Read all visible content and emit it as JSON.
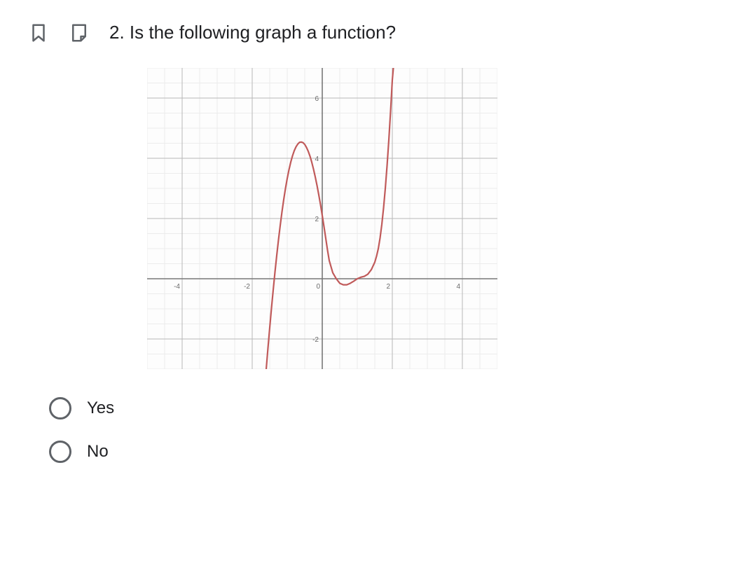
{
  "question": {
    "number_label": "2.",
    "text": "Is the following graph a function?"
  },
  "icons": {
    "bookmark_stroke": "#5f6368",
    "note_stroke": "#5f6368"
  },
  "graph": {
    "type": "line",
    "background_color": "#fdfdfd",
    "xlim": [
      -5,
      5
    ],
    "ylim": [
      -3,
      7
    ],
    "major_step": 2,
    "minor_step": 0.5,
    "major_grid_color": "#b8b8b8",
    "minor_grid_color": "#ececec",
    "axis_color": "#777777",
    "tick_label_color": "#6b6b6b",
    "tick_font_size": 10,
    "x_tick_labels": [
      {
        "v": -4,
        "label": "-4"
      },
      {
        "v": -2,
        "label": "-2"
      },
      {
        "v": 0,
        "label": "0"
      },
      {
        "v": 2,
        "label": "2"
      },
      {
        "v": 4,
        "label": "4"
      }
    ],
    "y_tick_labels": [
      {
        "v": -2,
        "label": "-2"
      },
      {
        "v": 2,
        "label": "2"
      },
      {
        "v": 4,
        "label": "4"
      },
      {
        "v": 6,
        "label": "6"
      }
    ],
    "curve": {
      "stroke": "#c05a5a",
      "stroke_width": 2.2,
      "points": [
        [
          -1.6,
          -3.0
        ],
        [
          -1.55,
          -2.3
        ],
        [
          -1.5,
          -1.63
        ],
        [
          -1.45,
          -0.98
        ],
        [
          -1.4,
          -0.37
        ],
        [
          -1.35,
          0.22
        ],
        [
          -1.3,
          0.77
        ],
        [
          -1.25,
          1.29
        ],
        [
          -1.2,
          1.77
        ],
        [
          -1.15,
          2.22
        ],
        [
          -1.1,
          2.63
        ],
        [
          -1.05,
          3.0
        ],
        [
          -1.0,
          3.33
        ],
        [
          -0.95,
          3.62
        ],
        [
          -0.9,
          3.87
        ],
        [
          -0.85,
          4.08
        ],
        [
          -0.8,
          4.25
        ],
        [
          -0.75,
          4.38
        ],
        [
          -0.7,
          4.47
        ],
        [
          -0.65,
          4.53
        ],
        [
          -0.6,
          4.54
        ],
        [
          -0.55,
          4.52
        ],
        [
          -0.5,
          4.46
        ],
        [
          -0.45,
          4.36
        ],
        [
          -0.4,
          4.23
        ],
        [
          -0.35,
          4.07
        ],
        [
          -0.3,
          3.87
        ],
        [
          -0.25,
          3.64
        ],
        [
          -0.2,
          3.38
        ],
        [
          -0.15,
          3.1
        ],
        [
          -0.1,
          2.79
        ],
        [
          -0.05,
          2.46
        ],
        [
          0.0,
          2.1
        ],
        [
          0.05,
          1.73
        ],
        [
          0.1,
          1.34
        ],
        [
          0.15,
          0.95
        ],
        [
          0.2,
          0.6
        ],
        [
          0.3,
          0.2
        ],
        [
          0.4,
          0.0
        ],
        [
          0.5,
          -0.15
        ],
        [
          0.6,
          -0.2
        ],
        [
          0.7,
          -0.2
        ],
        [
          0.8,
          -0.15
        ],
        [
          0.9,
          -0.08
        ],
        [
          1.0,
          0.0
        ],
        [
          1.1,
          0.05
        ],
        [
          1.2,
          0.08
        ],
        [
          1.3,
          0.15
        ],
        [
          1.4,
          0.3
        ],
        [
          1.5,
          0.55
        ],
        [
          1.55,
          0.75
        ],
        [
          1.6,
          1.0
        ],
        [
          1.65,
          1.35
        ],
        [
          1.7,
          1.8
        ],
        [
          1.75,
          2.35
        ],
        [
          1.8,
          3.0
        ],
        [
          1.85,
          3.75
        ],
        [
          1.9,
          4.6
        ],
        [
          1.95,
          5.55
        ],
        [
          2.0,
          6.6
        ],
        [
          2.03,
          7.0
        ]
      ]
    }
  },
  "answers": {
    "options": [
      {
        "id": "yes",
        "label": "Yes"
      },
      {
        "id": "no",
        "label": "No"
      }
    ],
    "radio_border_color": "#5f6368",
    "label_color": "#202124"
  }
}
